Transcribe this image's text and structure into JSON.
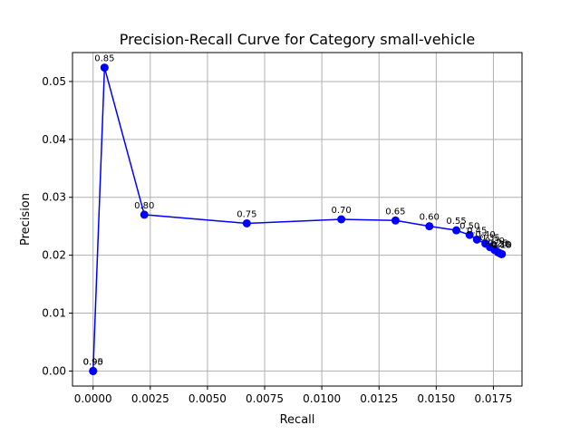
{
  "chart_data": {
    "type": "line",
    "title": "Precision-Recall Curve for Category small-vehicle",
    "xlabel": "Recall",
    "ylabel": "Precision",
    "xlim": [
      -0.0009,
      0.01875
    ],
    "ylim": [
      -0.0026,
      0.055
    ],
    "xticks": [
      0.0,
      0.0025,
      0.005,
      0.0075,
      0.01,
      0.0125,
      0.015,
      0.0175
    ],
    "xtick_labels": [
      "0.0000",
      "0.0025",
      "0.0050",
      "0.0075",
      "0.0100",
      "0.0125",
      "0.0150",
      "0.0175"
    ],
    "yticks": [
      0.0,
      0.01,
      0.02,
      0.03,
      0.04,
      0.05
    ],
    "ytick_labels": [
      "0.00",
      "0.01",
      "0.02",
      "0.03",
      "0.04",
      "0.05"
    ],
    "grid": true,
    "line_color": "#0000ff",
    "marker_color": "#0000ff",
    "points": [
      {
        "x": 0.0,
        "y": 0.0,
        "label": "0.95"
      },
      {
        "x": 0.0,
        "y": 0.0,
        "label": "0.90"
      },
      {
        "x": 0.0005,
        "y": 0.0524,
        "label": "0.85"
      },
      {
        "x": 0.00224,
        "y": 0.027,
        "label": "0.80"
      },
      {
        "x": 0.00672,
        "y": 0.0255,
        "label": "0.75"
      },
      {
        "x": 0.01085,
        "y": 0.0262,
        "label": "0.70"
      },
      {
        "x": 0.01322,
        "y": 0.026,
        "label": "0.65"
      },
      {
        "x": 0.0147,
        "y": 0.025,
        "label": "0.60"
      },
      {
        "x": 0.01588,
        "y": 0.0243,
        "label": "0.55"
      },
      {
        "x": 0.01646,
        "y": 0.0235,
        "label": "0.50"
      },
      {
        "x": 0.01678,
        "y": 0.0227,
        "label": "0.45"
      },
      {
        "x": 0.01715,
        "y": 0.022,
        "label": "0.40"
      },
      {
        "x": 0.01735,
        "y": 0.0214,
        "label": "0.35"
      },
      {
        "x": 0.01755,
        "y": 0.0209,
        "label": "0.30"
      },
      {
        "x": 0.0177,
        "y": 0.0205,
        "label": "0.25"
      },
      {
        "x": 0.0178,
        "y": 0.0203,
        "label": "0.20"
      },
      {
        "x": 0.01785,
        "y": 0.0202,
        "label": "0.15"
      },
      {
        "x": 0.01787,
        "y": 0.0202,
        "label": "0.10"
      }
    ]
  }
}
